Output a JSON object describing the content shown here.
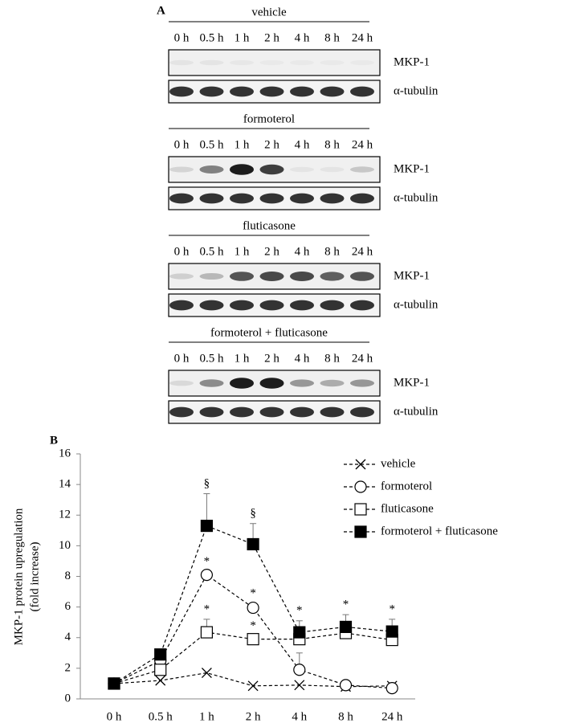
{
  "panel_a": {
    "label": "A",
    "groups": [
      {
        "name": "vehicle",
        "times": [
          "0 h",
          "0.5 h",
          "1 h",
          "2 h",
          "4 h",
          "8 h",
          "24 h"
        ],
        "bands": [
          "MKP-1",
          "α-tubulin"
        ]
      },
      {
        "name": "formoterol",
        "times": [
          "0 h",
          "0.5 h",
          "1 h",
          "2 h",
          "4 h",
          "8 h",
          "24 h"
        ],
        "bands": [
          "MKP-1",
          "α-tubulin"
        ]
      },
      {
        "name": "fluticasone",
        "times": [
          "0 h",
          "0.5 h",
          "1 h",
          "2 h",
          "4 h",
          "8 h",
          "24 h"
        ],
        "bands": [
          "MKP-1",
          "α-tubulin"
        ]
      },
      {
        "name": "formoterol + fluticasone",
        "times": [
          "0 h",
          "0.5 h",
          "1 h",
          "2 h",
          "4 h",
          "8 h",
          "24 h"
        ],
        "bands": [
          "MKP-1",
          "α-tubulin"
        ]
      }
    ]
  },
  "chart_data": {
    "type": "line",
    "panel_label": "B",
    "y_label": [
      "MKP-1 protein upregulation",
      "(fold increase)"
    ],
    "categories": [
      "0 h",
      "0.5 h",
      "1 h",
      "2 h",
      "4 h",
      "8 h",
      "24 h"
    ],
    "ylim": [
      0,
      16
    ],
    "yticks": [
      0,
      2,
      4,
      6,
      8,
      10,
      12,
      14,
      16
    ],
    "grid": false,
    "legend": "top-right",
    "series": [
      {
        "name": "vehicle",
        "color": "#000000",
        "marker": "x",
        "values": [
          1,
          1.2,
          1.7,
          0.85,
          0.9,
          0.8,
          0.85
        ],
        "errors": [
          null,
          null,
          null,
          null,
          null,
          null,
          null
        ],
        "annotations": [
          null,
          null,
          null,
          null,
          null,
          null,
          null
        ]
      },
      {
        "name": "formoterol",
        "color": "#000000",
        "marker": "open-circle",
        "values": [
          1,
          2.5,
          8.1,
          5.95,
          1.9,
          0.9,
          0.7
        ],
        "errors": [
          null,
          null,
          null,
          0.3,
          1.1,
          null,
          null
        ],
        "annotations": [
          null,
          null,
          "*",
          "*",
          null,
          null,
          null
        ]
      },
      {
        "name": "fluticasone",
        "color": "#000000",
        "marker": "open-square",
        "values": [
          1,
          1.9,
          4.35,
          3.9,
          3.9,
          4.3,
          3.85
        ],
        "errors": [
          null,
          null,
          0.85,
          null,
          null,
          null,
          null
        ],
        "annotations": [
          null,
          null,
          "*",
          "*",
          null,
          null,
          null
        ]
      },
      {
        "name": "formoterol + fluticasone",
        "color": "#000000",
        "marker": "filled-square",
        "values": [
          1,
          2.9,
          11.3,
          10.1,
          4.35,
          4.7,
          4.4
        ],
        "errors": [
          null,
          null,
          2.1,
          1.35,
          0.75,
          0.8,
          0.8
        ],
        "annotations": [
          null,
          null,
          "§",
          "§",
          "*",
          "*",
          "*"
        ]
      }
    ]
  }
}
